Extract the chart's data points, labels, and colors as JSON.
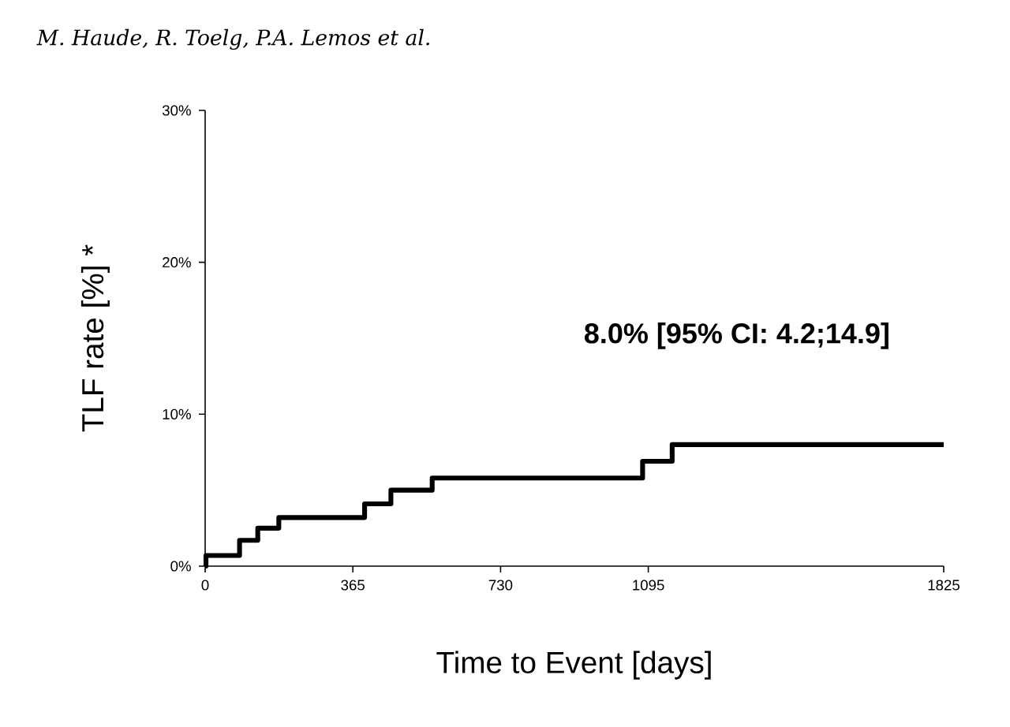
{
  "chart_data": {
    "type": "step",
    "title": "M. Haude, R. Toelg, P.A. Lemos et al.",
    "xlabel": "Time to Event [days]",
    "ylabel": "TLF rate [%] *",
    "x": [
      0,
      2,
      85,
      130,
      182,
      394,
      459,
      561,
      1081,
      1154,
      1825
    ],
    "series": [
      {
        "color": "#000000",
        "values": [
          0,
          0.7,
          1.7,
          2.5,
          3.2,
          4.1,
          5.0,
          5.8,
          6.9,
          8.0,
          8.0
        ]
      }
    ],
    "xlim": [
      0,
      1825
    ],
    "ylim": [
      0,
      30
    ],
    "xticks": [
      0,
      365,
      730,
      1095,
      1825
    ],
    "yticks": [
      {
        "value": 0,
        "label": "0%"
      },
      {
        "value": 10,
        "label": "10%"
      },
      {
        "value": 20,
        "label": "20%"
      },
      {
        "value": 30,
        "label": "30%"
      }
    ],
    "annotations": [
      "8.0% [95% CI: 4.2;14.9]"
    ],
    "grid": false,
    "marker": "none",
    "line_style": "solid"
  }
}
